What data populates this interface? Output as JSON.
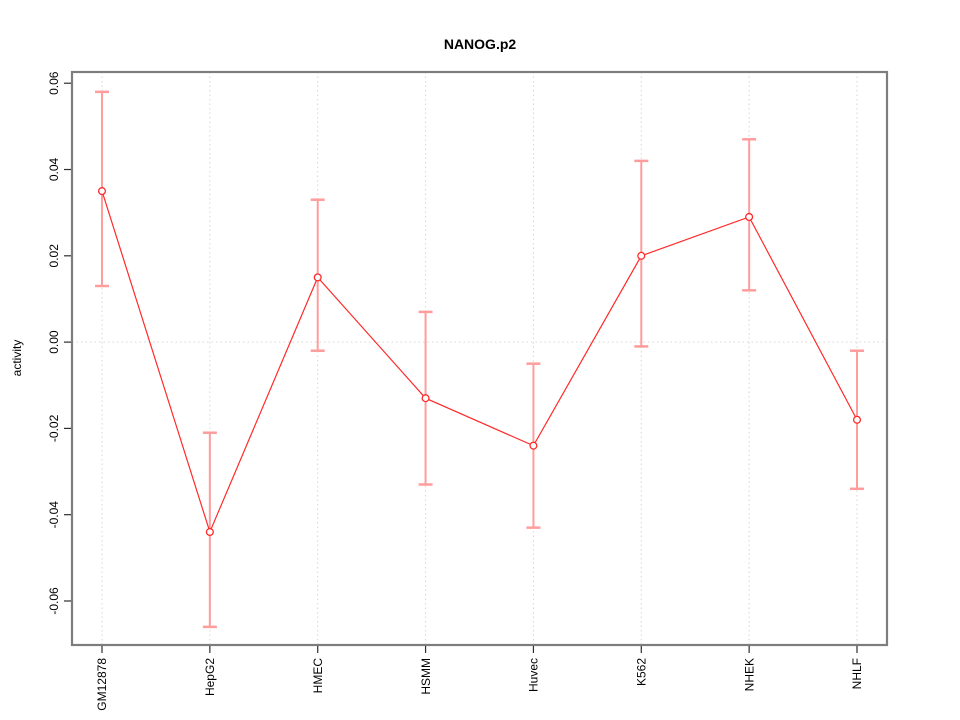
{
  "title": "NANOG.p2",
  "chart_data": {
    "type": "line",
    "title": "NANOG.p2",
    "xlabel": "",
    "ylabel": "activity",
    "categories": [
      "GM12878",
      "HepG2",
      "HMEC",
      "HSMM",
      "Huvec",
      "K562",
      "NHEK",
      "NHLF"
    ],
    "series": [
      {
        "name": "activity",
        "values": [
          0.035,
          -0.044,
          0.015,
          -0.013,
          -0.024,
          0.02,
          0.029,
          -0.018
        ],
        "error_low": [
          0.013,
          -0.066,
          -0.002,
          -0.033,
          -0.043,
          -0.001,
          0.012,
          -0.034
        ],
        "error_high": [
          0.058,
          -0.021,
          0.033,
          0.007,
          -0.005,
          0.042,
          0.047,
          -0.002
        ]
      }
    ],
    "ylim": [
      -0.0702,
      0.0626
    ],
    "yticks": [
      -0.06,
      -0.04,
      -0.02,
      0,
      0.02,
      0.04,
      0.06
    ],
    "ytick_labels": [
      "-0.06",
      "-0.04",
      "-0.02",
      "0.00",
      "0.02",
      "0.04",
      "0.06"
    ],
    "legend": "none",
    "grid": "dotted vertical line at each category; dotted horizontal line at y=0",
    "marker": "open-circle",
    "colors": {
      "line": "#ff2a2a",
      "point": "#ff2a2a",
      "error_bar": "#ff9d9d",
      "grid": "#d6d6d6",
      "frame": "#7d7d7d",
      "tick": "#2e2e2e",
      "text": "#000000",
      "background": "#ffffff"
    }
  }
}
